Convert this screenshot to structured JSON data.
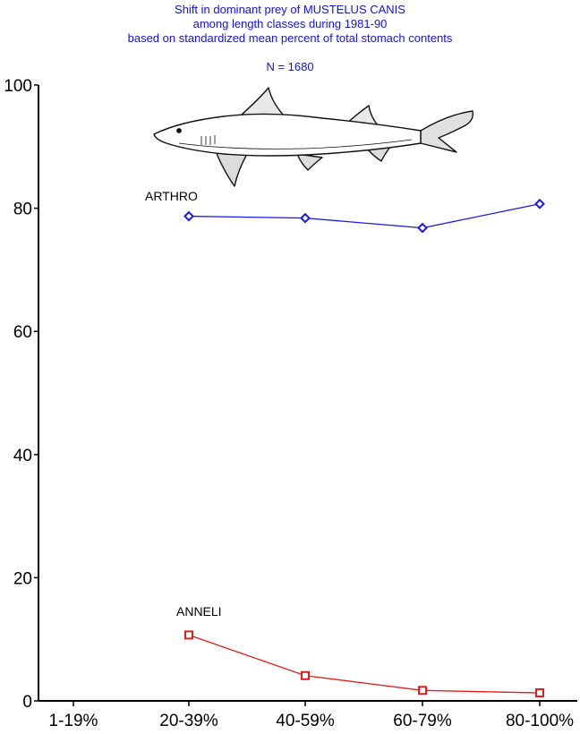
{
  "title_lines": [
    "Shift in dominant prey of MUSTELUS CANIS",
    "among length classes during 1981-90",
    "based on standardized mean percent of  total stomach contents"
  ],
  "subtitle": "N = 1680",
  "colors": {
    "title": "#1414d2",
    "arthro": "#1a1ae6",
    "anneli": "#e61a1a",
    "axis": "#000000"
  },
  "chart_data": {
    "type": "line",
    "title": "Shift in dominant prey of MUSTELUS CANIS among length classes during 1981-90 based on standardized mean percent of  total stomach contents",
    "subtitle": "N = 1680",
    "categories": [
      "1-19%",
      "20-39%",
      "40-59%",
      "60-79%",
      "80-100%"
    ],
    "ylim": [
      0,
      100
    ],
    "yticks": [
      "0",
      "20",
      "40",
      "60",
      "80",
      "100"
    ],
    "xlabel": "",
    "ylabel": "",
    "grid": false,
    "series": [
      {
        "name": "ARTHRO",
        "marker": "diamond",
        "values": [
          null,
          78.7,
          78.4,
          76.8,
          80.7
        ]
      },
      {
        "name": "ANNELI",
        "marker": "square",
        "values": [
          null,
          10.7,
          4.1,
          1.7,
          1.3
        ]
      }
    ],
    "illustration": "shark-drawing"
  }
}
